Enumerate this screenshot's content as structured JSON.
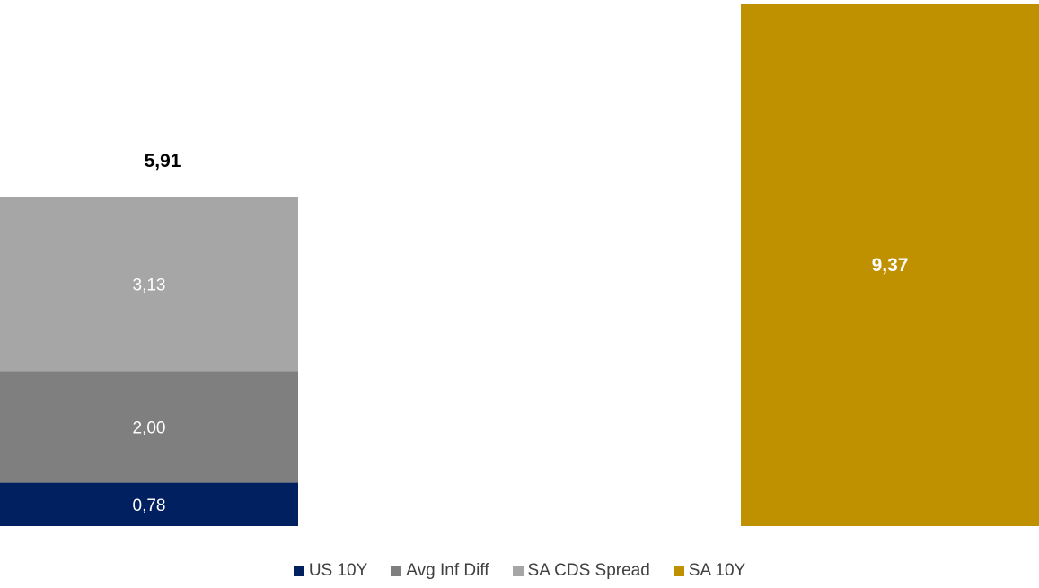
{
  "chart_data": {
    "type": "bar",
    "stacked": true,
    "categories": [
      "",
      ""
    ],
    "series": [
      {
        "name": "US 10Y",
        "color": "#002060",
        "values": [
          0.78,
          null
        ],
        "labels": [
          "0,78",
          ""
        ]
      },
      {
        "name": "Avg Inf Diff",
        "color": "#7f7f7f",
        "values": [
          2.0,
          null
        ],
        "labels": [
          "2,00",
          ""
        ]
      },
      {
        "name": "SA CDS Spread",
        "color": "#a6a6a6",
        "values": [
          3.13,
          null
        ],
        "labels": [
          "3,13",
          ""
        ]
      },
      {
        "name": "SA 10Y",
        "color": "#bf9000",
        "values": [
          null,
          9.37
        ],
        "labels": [
          "",
          "9,37"
        ]
      }
    ],
    "totals": [
      "5,91",
      ""
    ],
    "total_values": [
      5.91,
      9.37
    ],
    "ylim": [
      0,
      9.37
    ],
    "grid": false,
    "legend_position": "bottom",
    "title": "",
    "xlabel": "",
    "ylabel": ""
  }
}
